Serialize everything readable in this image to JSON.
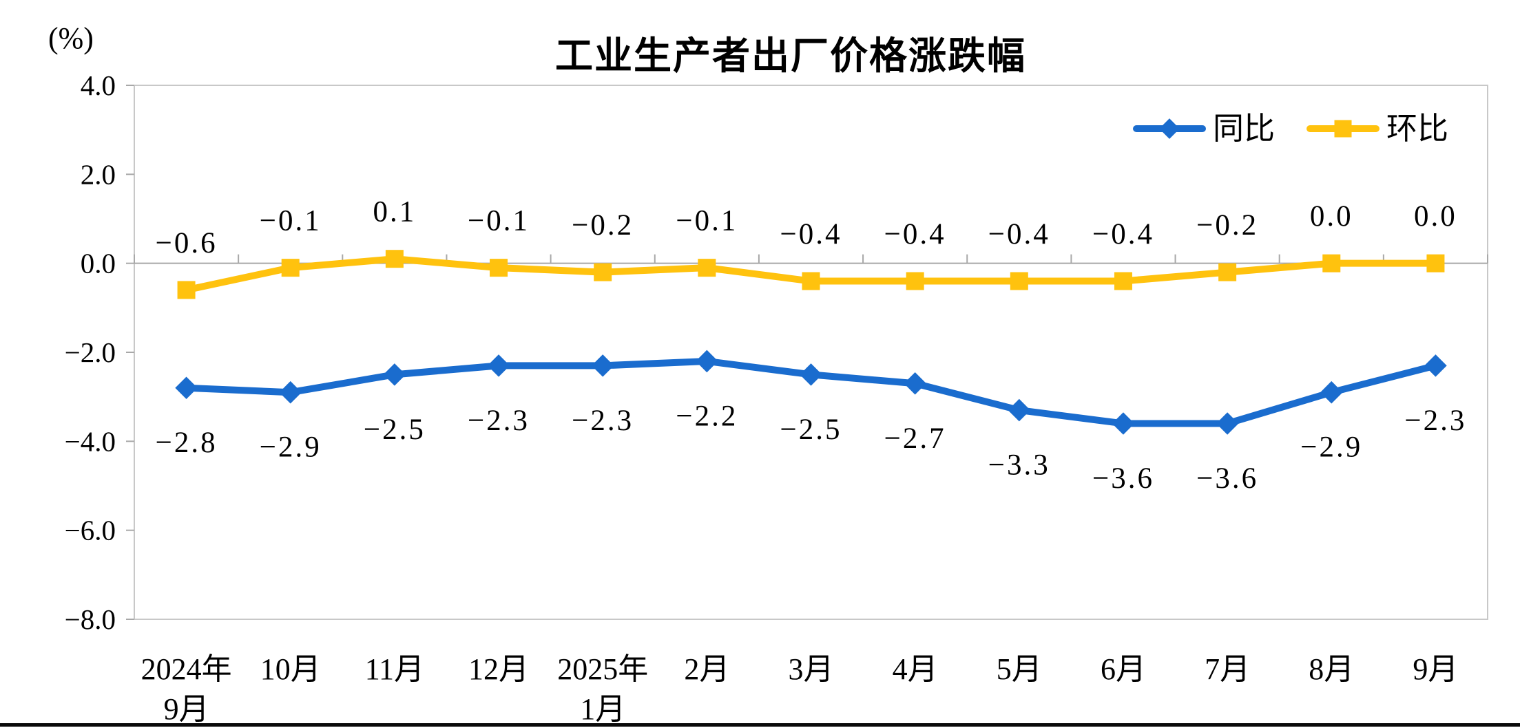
{
  "page": {
    "background": "#ffffff"
  },
  "chart_data": {
    "type": "line",
    "title": "工业生产者出厂价格涨跌幅",
    "unit_label": "(%)",
    "categories": [
      "2024年\n9月",
      "10月",
      "11月",
      "12月",
      "2025年\n1月",
      "2月",
      "3月",
      "4月",
      "5月",
      "6月",
      "7月",
      "8月",
      "9月"
    ],
    "series": [
      {
        "name": "同比",
        "color": "#1A6CCE",
        "marker": "diamond",
        "label_position": "below",
        "values": [
          -2.8,
          -2.9,
          -2.5,
          -2.3,
          -2.3,
          -2.2,
          -2.5,
          -2.7,
          -3.3,
          -3.6,
          -3.6,
          -2.9,
          -2.3
        ]
      },
      {
        "name": "环比",
        "color": "#FFC20E",
        "marker": "square",
        "label_position": "above",
        "values": [
          -0.6,
          -0.1,
          0.1,
          -0.1,
          -0.2,
          -0.1,
          -0.4,
          -0.4,
          -0.4,
          -0.4,
          -0.2,
          0.0,
          0.0
        ]
      }
    ],
    "y_ticks": [
      4.0,
      2.0,
      0.0,
      -2.0,
      -4.0,
      -6.0,
      -8.0
    ],
    "ylim": [
      -8.0,
      4.0
    ],
    "grid": false,
    "legend_position": "top-right-inside",
    "frame_color": "#C8C8C8",
    "axis_color": "#A8A8A8",
    "text_color": "#000000"
  }
}
